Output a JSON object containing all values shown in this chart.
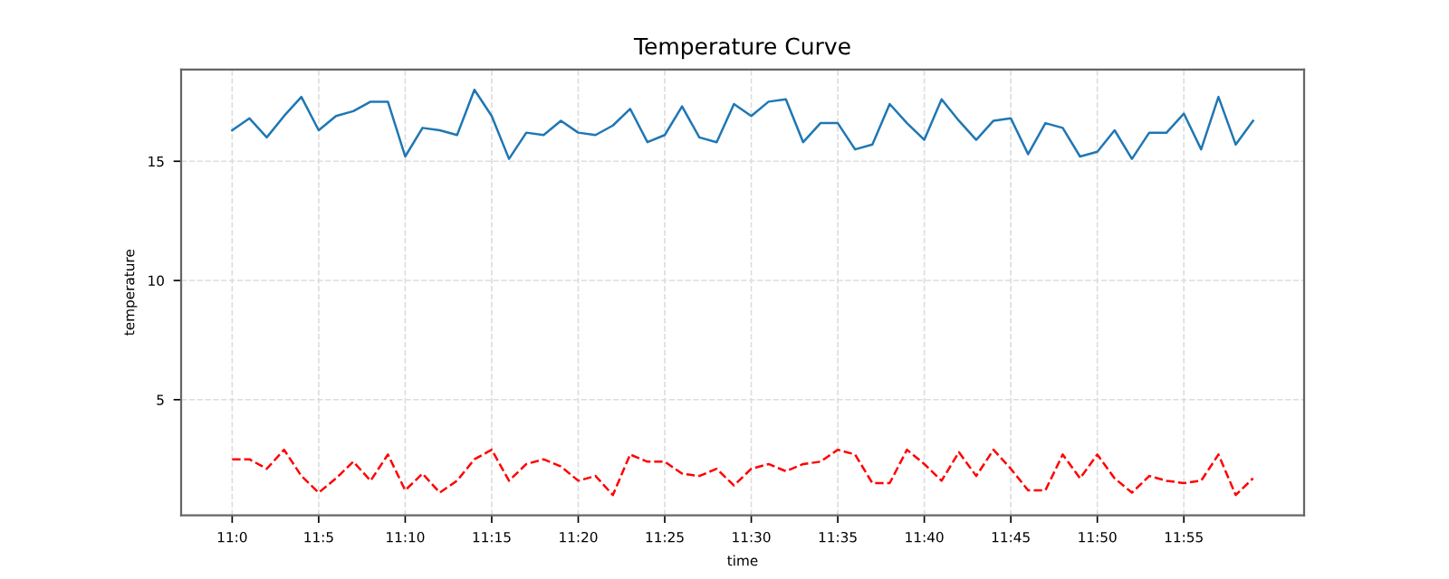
{
  "chart_data": {
    "type": "line",
    "title": "Temperature Curve",
    "xlabel": "time",
    "ylabel": "temperature",
    "categories": [
      "11:0",
      null,
      null,
      null,
      null,
      "11:5",
      null,
      null,
      null,
      null,
      "11:10",
      null,
      null,
      null,
      null,
      "11:15",
      null,
      null,
      null,
      null,
      "11:20",
      null,
      null,
      null,
      null,
      "11:25",
      null,
      null,
      null,
      null,
      "11:30",
      null,
      null,
      null,
      null,
      "11:35",
      null,
      null,
      null,
      null,
      "11:40",
      null,
      null,
      null,
      null,
      "11:45",
      null,
      null,
      null,
      null,
      "11:50",
      null,
      null,
      null,
      null,
      "11:55",
      null,
      null,
      null,
      null
    ],
    "series": [
      {
        "color": "#1f77b4",
        "line_style": "solid",
        "values": [
          16.3,
          16.8,
          16.0,
          16.9,
          17.7,
          16.3,
          16.9,
          17.1,
          17.5,
          17.5,
          15.2,
          16.4,
          16.3,
          16.1,
          18.0,
          16.9,
          15.1,
          16.2,
          16.1,
          16.7,
          16.2,
          16.1,
          16.5,
          17.2,
          15.8,
          16.1,
          17.3,
          16.0,
          15.8,
          17.4,
          16.9,
          17.5,
          17.6,
          15.8,
          16.6,
          16.6,
          15.5,
          15.7,
          17.4,
          16.6,
          15.9,
          17.6,
          16.7,
          15.9,
          16.7,
          16.8,
          15.3,
          16.6,
          16.4,
          15.2,
          15.4,
          16.3,
          15.1,
          16.2,
          16.2,
          17.0,
          15.5,
          17.7,
          15.7,
          16.7
        ]
      },
      {
        "color": "#ff0000",
        "line_style": "dashed",
        "values": [
          2.5,
          2.5,
          2.1,
          2.9,
          1.8,
          1.1,
          1.7,
          2.4,
          1.6,
          2.7,
          1.2,
          1.9,
          1.1,
          1.6,
          2.5,
          2.9,
          1.6,
          2.3,
          2.5,
          2.2,
          1.6,
          1.8,
          1.0,
          2.7,
          2.4,
          2.4,
          1.9,
          1.8,
          2.1,
          1.4,
          2.1,
          2.3,
          2.0,
          2.3,
          2.4,
          2.9,
          2.7,
          1.5,
          1.5,
          2.9,
          2.3,
          1.6,
          2.8,
          1.8,
          2.9,
          2.1,
          1.2,
          1.2,
          2.7,
          1.7,
          2.7,
          1.7,
          1.1,
          1.8,
          1.6,
          1.5,
          1.6,
          2.7,
          1.0,
          1.7
        ]
      }
    ],
    "ylim": [
      0.15,
      18.85
    ],
    "yticks": [
      5,
      10,
      15
    ],
    "grid": true,
    "legend": false
  }
}
